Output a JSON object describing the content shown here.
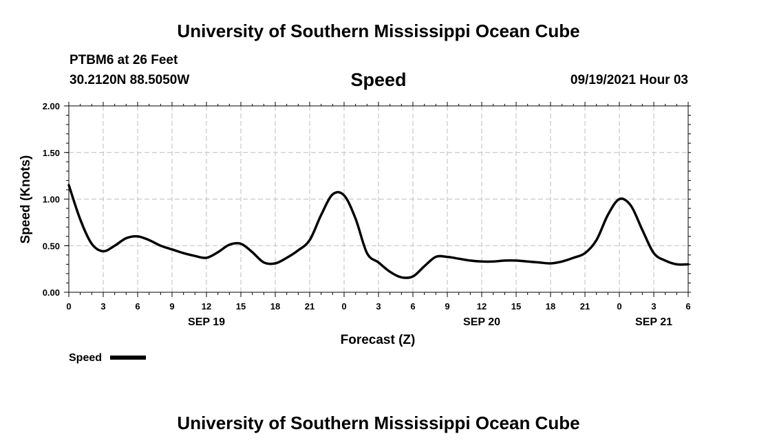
{
  "header": {
    "title_top": "University of Southern Mississippi Ocean Cube",
    "station": "PTBM6 at 26 Feet",
    "coordinates": "30.2120N  88.5050W",
    "variable": "Speed",
    "datetime": "09/19/2021 Hour 03",
    "title_bottom": "University of Southern Mississippi Ocean Cube"
  },
  "chart_data": {
    "type": "line",
    "title": "Speed",
    "xlabel": "Forecast (Z)",
    "ylabel": "Speed (Knots)",
    "ylim": [
      0,
      2
    ],
    "xlim": [
      0,
      54
    ],
    "yticks": [
      "0.00",
      "0.50",
      "1.00",
      "1.50",
      "2.00"
    ],
    "xticks": [
      "0",
      "3",
      "6",
      "9",
      "12",
      "15",
      "18",
      "21",
      "0",
      "3",
      "6",
      "9",
      "12",
      "15",
      "18",
      "21",
      "0",
      "3",
      "6"
    ],
    "day_labels": [
      {
        "label": "SEP 19",
        "hour": 12
      },
      {
        "label": "SEP 20",
        "hour": 36
      },
      {
        "label": "SEP 21",
        "hour": 51
      }
    ],
    "grid": true,
    "legend": "bottom-left",
    "series": [
      {
        "name": "Speed",
        "color": "#000000",
        "x": [
          0,
          1,
          2,
          3,
          4,
          5,
          6,
          7,
          8,
          9,
          10,
          11,
          12,
          13,
          14,
          15,
          16,
          17,
          18,
          19,
          20,
          21,
          22,
          23,
          24,
          25,
          26,
          27,
          28,
          29,
          30,
          31,
          32,
          33,
          34,
          35,
          36,
          37,
          38,
          39,
          40,
          41,
          42,
          43,
          44,
          45,
          46,
          47,
          48,
          49,
          50,
          51,
          52,
          53,
          54
        ],
        "values": [
          1.15,
          0.78,
          0.52,
          0.44,
          0.5,
          0.58,
          0.6,
          0.56,
          0.5,
          0.46,
          0.42,
          0.39,
          0.37,
          0.43,
          0.51,
          0.52,
          0.43,
          0.32,
          0.31,
          0.37,
          0.45,
          0.56,
          0.83,
          1.05,
          1.04,
          0.79,
          0.42,
          0.32,
          0.22,
          0.16,
          0.17,
          0.28,
          0.38,
          0.38,
          0.36,
          0.34,
          0.33,
          0.33,
          0.34,
          0.34,
          0.33,
          0.32,
          0.31,
          0.33,
          0.37,
          0.42,
          0.56,
          0.83,
          1.0,
          0.93,
          0.67,
          0.42,
          0.34,
          0.3,
          0.3
        ]
      }
    ]
  }
}
